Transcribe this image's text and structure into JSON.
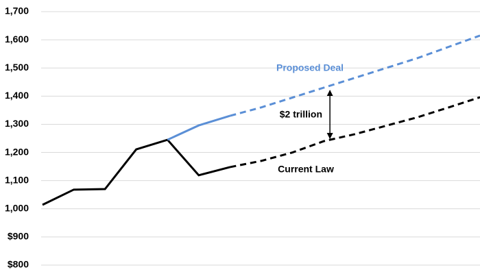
{
  "chart_data": {
    "type": "line",
    "categories": [
      null,
      null,
      null,
      null,
      null,
      null,
      null,
      null,
      null,
      null,
      null,
      null,
      null,
      null,
      null
    ],
    "series": [
      {
        "name": "Current Law",
        "color": "#000000",
        "values": [
          1014,
          1068,
          1070,
          1211,
          1245,
          1119,
          1148,
          1170,
          1200,
          1240,
          1265,
          1295,
          1325,
          1360,
          1396
        ]
      },
      {
        "name": "Proposed Deal",
        "color": "#5b8fd6",
        "values": [
          null,
          null,
          null,
          null,
          1245,
          1296,
          1330,
          1360,
          1395,
          1430,
          1465,
          1500,
          1535,
          1575,
          1615
        ]
      }
    ],
    "dash_from_index": 6,
    "annotation": "$2 trillion",
    "ylim": [
      800,
      1700
    ],
    "yticks": [
      {
        "value": 800,
        "label": "$800"
      },
      {
        "value": 900,
        "label": "$900"
      },
      {
        "value": 1000,
        "label": "1,000"
      },
      {
        "value": 1100,
        "label": "1,100"
      },
      {
        "value": 1200,
        "label": "1,200"
      },
      {
        "value": 1300,
        "label": "1,300"
      },
      {
        "value": 1400,
        "label": "1,400"
      },
      {
        "value": 1500,
        "label": "1,500"
      },
      {
        "value": 1600,
        "label": "1,600"
      },
      {
        "value": 1700,
        "label": "1,700"
      }
    ],
    "grid": true
  }
}
